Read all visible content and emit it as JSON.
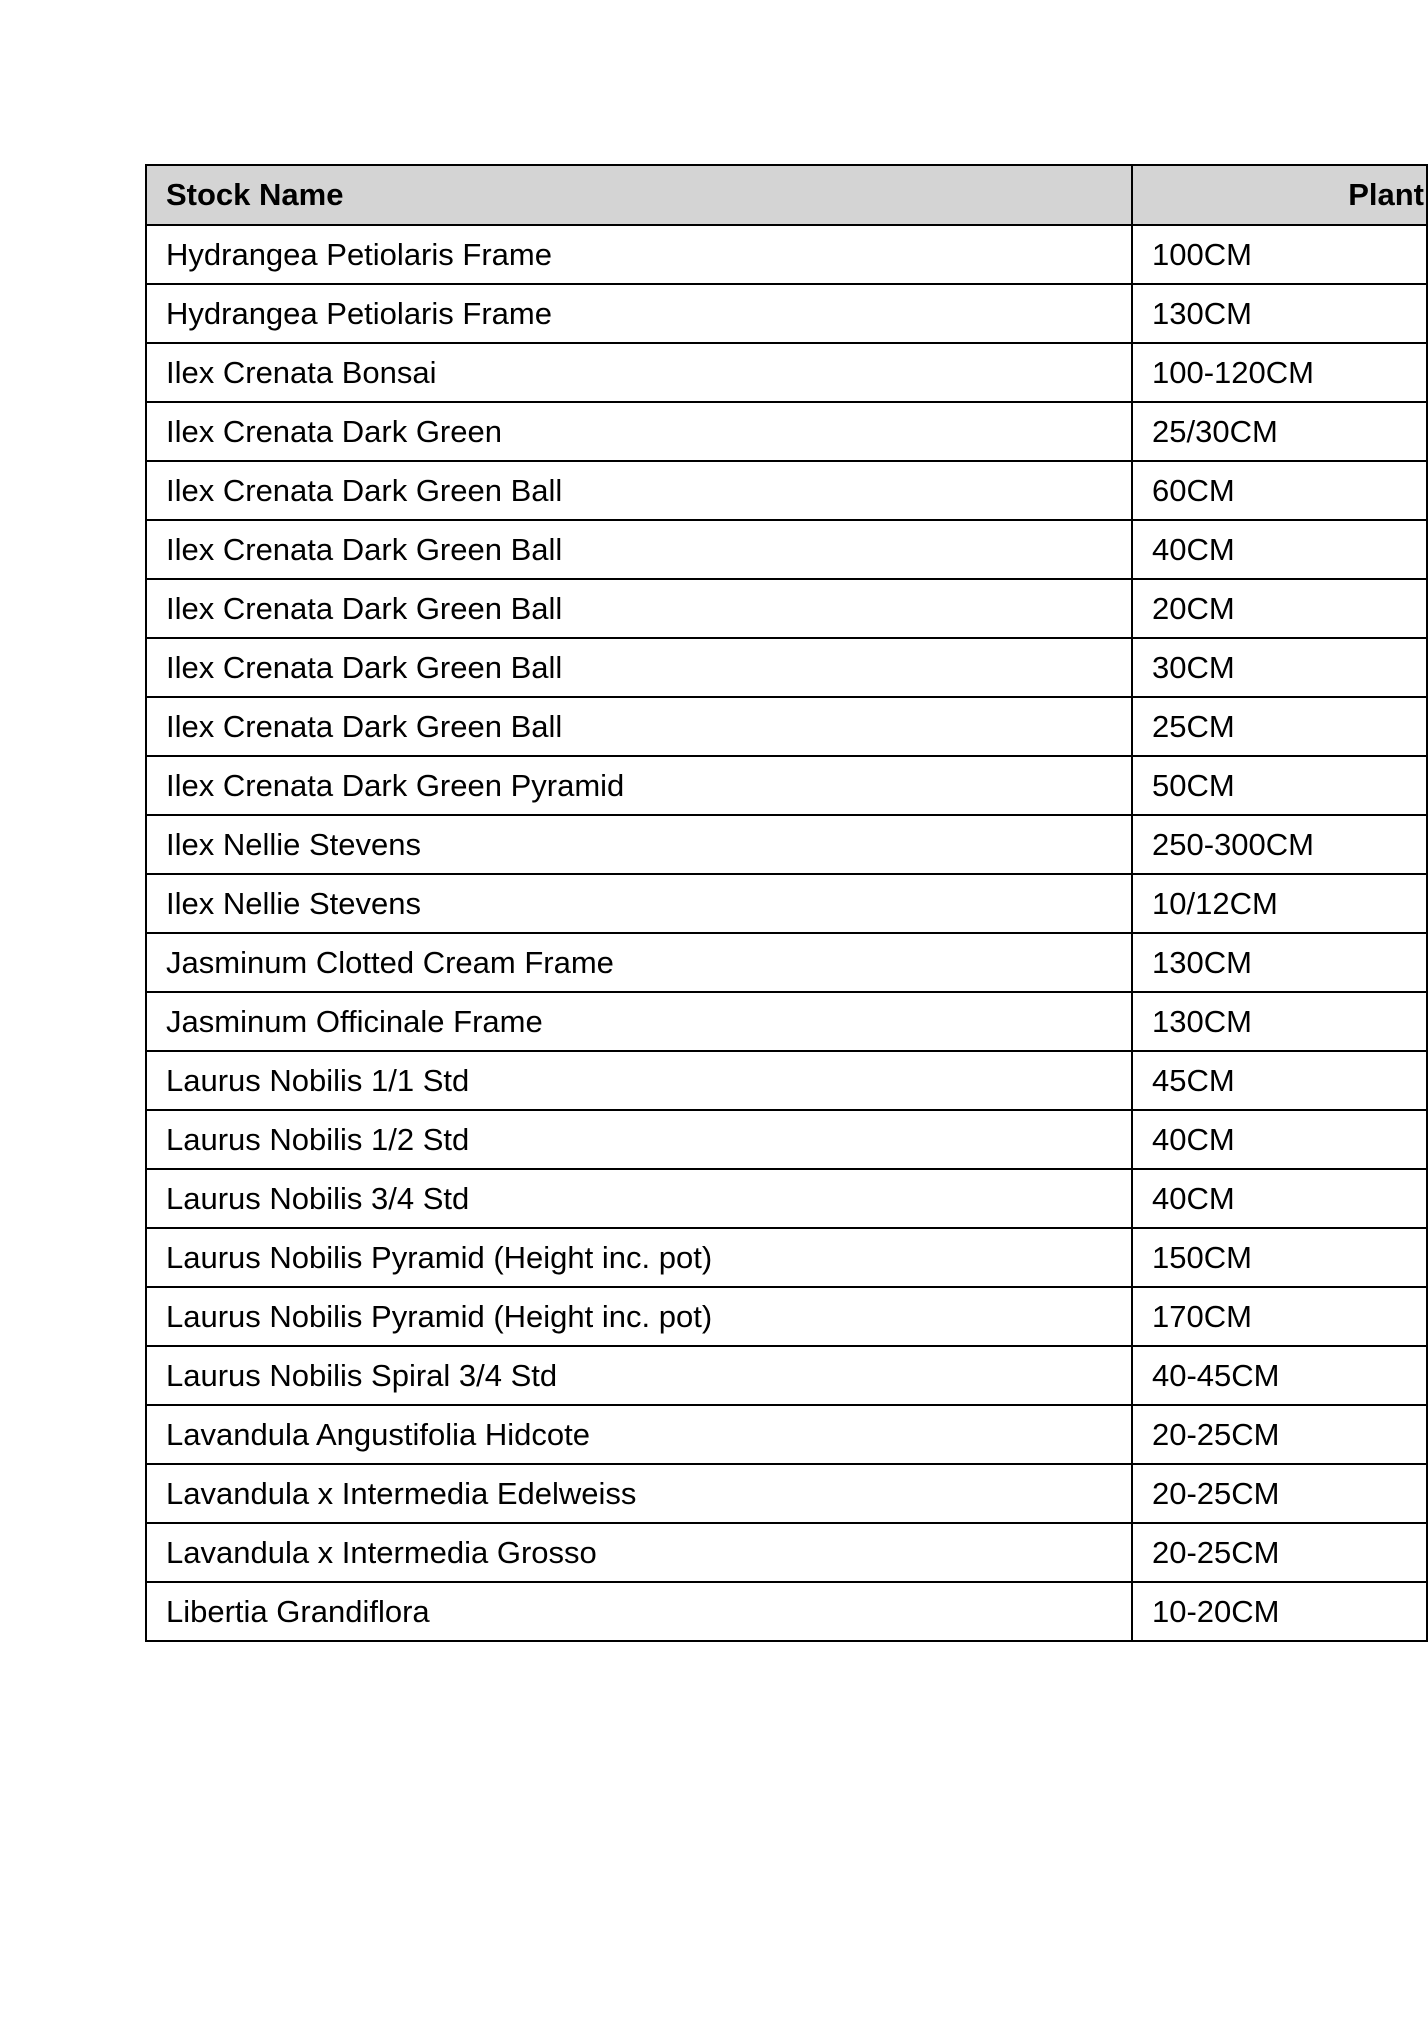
{
  "table": {
    "headers": [
      "Stock Name",
      "Plant"
    ],
    "rows": [
      [
        "Hydrangea Petiolaris Frame",
        "100CM"
      ],
      [
        "Hydrangea Petiolaris Frame",
        "130CM"
      ],
      [
        "Ilex Crenata Bonsai",
        "100-120CM"
      ],
      [
        "Ilex Crenata Dark Green",
        "25/30CM"
      ],
      [
        "Ilex Crenata Dark Green Ball",
        "60CM"
      ],
      [
        "Ilex Crenata Dark Green Ball",
        "40CM"
      ],
      [
        "Ilex Crenata Dark Green Ball",
        "20CM"
      ],
      [
        "Ilex Crenata Dark Green Ball",
        "30CM"
      ],
      [
        "Ilex Crenata Dark Green Ball",
        "25CM"
      ],
      [
        "Ilex Crenata Dark Green Pyramid",
        "50CM"
      ],
      [
        "Ilex Nellie Stevens",
        "250-300CM"
      ],
      [
        "Ilex Nellie Stevens",
        "10/12CM"
      ],
      [
        "Jasminum Clotted Cream Frame",
        "130CM"
      ],
      [
        "Jasminum Officinale Frame",
        "130CM"
      ],
      [
        "Laurus Nobilis 1/1 Std",
        "45CM"
      ],
      [
        "Laurus Nobilis 1/2 Std",
        "40CM"
      ],
      [
        "Laurus Nobilis 3/4 Std",
        "40CM"
      ],
      [
        "Laurus Nobilis Pyramid (Height inc. pot)",
        "150CM"
      ],
      [
        "Laurus Nobilis Pyramid (Height inc. pot)",
        "170CM"
      ],
      [
        "Laurus Nobilis Spiral 3/4 Std",
        "40-45CM"
      ],
      [
        "Lavandula Angustifolia Hidcote",
        "20-25CM"
      ],
      [
        "Lavandula x Intermedia Edelweiss",
        "20-25CM"
      ],
      [
        "Lavandula x Intermedia Grosso",
        "20-25CM"
      ],
      [
        "Libertia Grandiflora",
        "10-20CM"
      ]
    ]
  }
}
